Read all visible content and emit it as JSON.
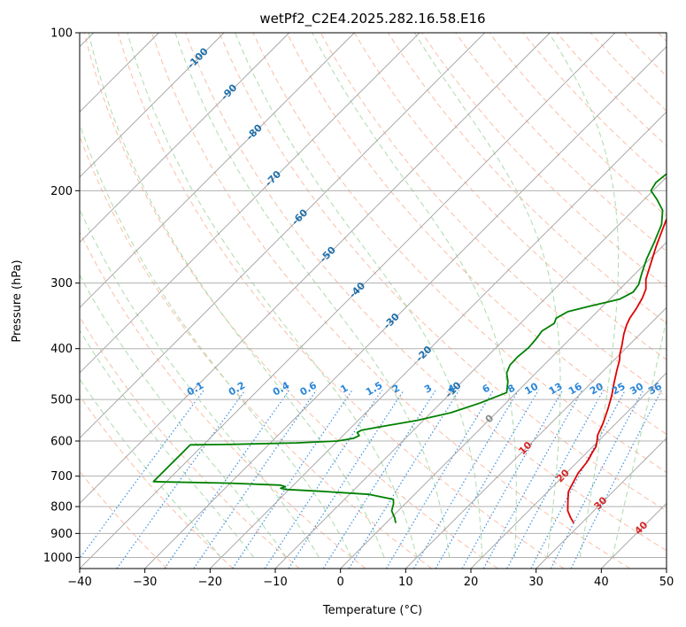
{
  "chart_data": {
    "type": "line",
    "title": "wetPf2_C2E4.2025.282.16.58.E16",
    "xlabel": "Temperature (°C)",
    "ylabel": "Pressure (hPa)",
    "xlim": [
      -40,
      50
    ],
    "ylim": [
      1050,
      100
    ],
    "y_scale": "log",
    "grid": true,
    "x_ticks": [
      -40,
      -30,
      -20,
      -10,
      0,
      10,
      20,
      30,
      40,
      50
    ],
    "x_tick_labels": [
      "−40",
      "−30",
      "−20",
      "−10",
      "0",
      "10",
      "20",
      "30",
      "40",
      "50"
    ],
    "y_ticks": [
      100,
      200,
      300,
      400,
      500,
      600,
      700,
      800,
      900,
      1000
    ],
    "y_tick_labels": [
      "100",
      "200",
      "300",
      "400",
      "500",
      "600",
      "700",
      "800",
      "900",
      "1000"
    ],
    "series": [
      {
        "color": "#e00000",
        "points": [
          [
            28.8,
            860
          ],
          [
            27.5,
            840
          ],
          [
            26,
            815
          ],
          [
            24.5,
            780
          ],
          [
            23.2,
            750
          ],
          [
            22.5,
            720
          ],
          [
            21.8,
            690
          ],
          [
            21.5,
            660
          ],
          [
            21.2,
            645
          ],
          [
            20.8,
            630
          ],
          [
            20.5,
            615
          ],
          [
            19.8,
            600
          ],
          [
            19,
            585
          ],
          [
            18,
            555
          ],
          [
            16.5,
            520
          ],
          [
            15,
            490
          ],
          [
            13.5,
            465
          ],
          [
            12,
            440
          ],
          [
            10.8,
            420
          ],
          [
            10,
            410
          ],
          [
            9,
            395
          ],
          [
            7.5,
            375
          ],
          [
            6.5,
            360
          ],
          [
            6,
            350
          ],
          [
            5.5,
            335
          ],
          [
            4.8,
            320
          ],
          [
            4,
            308
          ],
          [
            2.5,
            295
          ],
          [
            0.8,
            275
          ],
          [
            -1,
            255
          ],
          [
            -2.5,
            238
          ],
          [
            -3.8,
            224
          ],
          [
            -4.3,
            213
          ],
          [
            -4,
            205
          ],
          [
            -3.5,
            198
          ],
          [
            -3,
            190
          ],
          [
            -2.5,
            180
          ],
          [
            -2,
            170
          ],
          [
            -1.2,
            160
          ],
          [
            0.5,
            150
          ],
          [
            3,
            140
          ],
          [
            6.5,
            130
          ],
          [
            9,
            122
          ],
          [
            11,
            112
          ],
          [
            13,
            105
          ],
          [
            15.5,
            100
          ]
        ]
      },
      {
        "color": "#008000",
        "points": [
          [
            1.5,
            860
          ],
          [
            0.5,
            840
          ],
          [
            -1,
            815
          ],
          [
            -1.8,
            790
          ],
          [
            -2.5,
            775
          ],
          [
            -7,
            758
          ],
          [
            -15,
            748
          ],
          [
            -20.5,
            742
          ],
          [
            -21.5,
            738
          ],
          [
            -21,
            733
          ],
          [
            -22,
            728
          ],
          [
            -30,
            722
          ],
          [
            -40,
            718
          ],
          [
            -42,
            717
          ],
          [
            -42,
            610
          ],
          [
            -36,
            609
          ],
          [
            -26,
            605
          ],
          [
            -20,
            600
          ],
          [
            -18,
            593
          ],
          [
            -17.5,
            586
          ],
          [
            -18.3,
            578
          ],
          [
            -18,
            572
          ],
          [
            -16,
            565
          ],
          [
            -11,
            548
          ],
          [
            -7,
            530
          ],
          [
            -4,
            508
          ],
          [
            -1.5,
            485
          ],
          [
            -3,
            462
          ],
          [
            -4.5,
            445
          ],
          [
            -5.2,
            430
          ],
          [
            -5.3,
            415
          ],
          [
            -5.0,
            398
          ],
          [
            -5.2,
            383
          ],
          [
            -5.5,
            370
          ],
          [
            -4.8,
            358
          ],
          [
            -5.3,
            350
          ],
          [
            -4.5,
            340
          ],
          [
            -2,
            332
          ],
          [
            1.5,
            322
          ],
          [
            2.5,
            312
          ],
          [
            2.2,
            302
          ],
          [
            1,
            288
          ],
          [
            -0.5,
            270
          ],
          [
            -1.8,
            252
          ],
          [
            -3.5,
            232
          ],
          [
            -5.5,
            218
          ],
          [
            -8,
            208
          ],
          [
            -10.3,
            200
          ],
          [
            -10.8,
            193
          ],
          [
            -10.5,
            186
          ],
          [
            -10,
            176
          ],
          [
            -9.5,
            165
          ],
          [
            -9,
            155
          ],
          [
            -8,
            142
          ],
          [
            -7,
            130
          ],
          [
            -5.5,
            120
          ],
          [
            -3.5,
            110
          ],
          [
            -1.5,
            103
          ],
          [
            0,
            100
          ]
        ]
      }
    ],
    "dry_adiabat_labels": [
      "-100",
      "-90",
      "-80",
      "-70",
      "-60",
      "-50",
      "-40",
      "-30",
      "-20",
      "-10",
      "0",
      "10",
      "20",
      "30",
      "40"
    ],
    "mixing_ratio_labels": [
      "0.1",
      "0.2",
      "0.4",
      "0.6",
      "1",
      "1.5",
      "2",
      "3",
      "4",
      "6",
      "8",
      "10",
      "13",
      "16",
      "20",
      "25",
      "30",
      "36"
    ],
    "colors": {
      "isobar": "#b0b0b0",
      "isotherm": "#a0a0a0",
      "dry_adiabat": "#f8a88a",
      "moist_adiabat": "#9fd49f",
      "mixing_ratio": "#3a8fe0",
      "annot_cold": "#1f6faa",
      "annot_warm": "#d62728",
      "annot_zero": "#888888",
      "mixing_label": "#2a86d8"
    }
  }
}
